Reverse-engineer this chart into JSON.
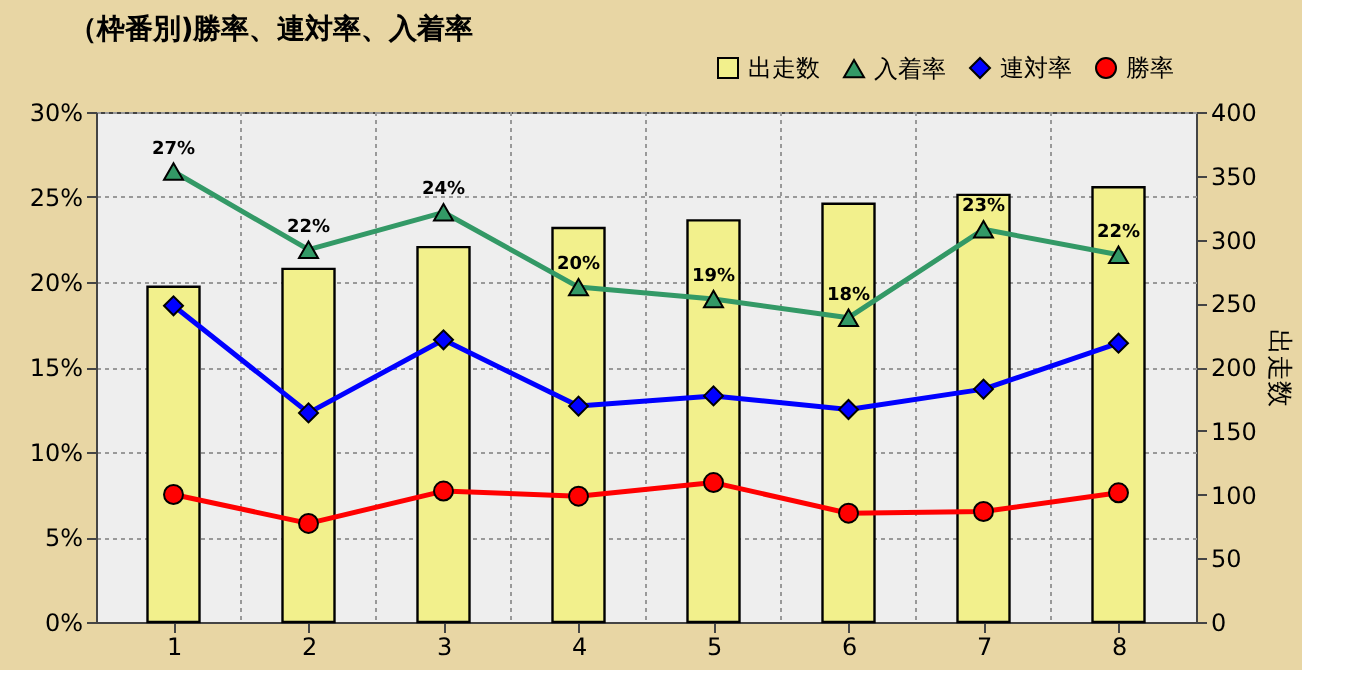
{
  "chart_data": {
    "type": "line",
    "title": "（枠番別)勝率、連対率、入着率",
    "categories": [
      "1",
      "2",
      "3",
      "4",
      "5",
      "6",
      "7",
      "8"
    ],
    "series": [
      {
        "name": "出走数",
        "type": "bar",
        "axis": "y2",
        "color": "#f2f08c",
        "values": [
          263,
          277,
          294,
          309,
          315,
          328,
          335,
          341
        ]
      },
      {
        "name": "入着率",
        "marker": "triangle",
        "color": "#339966",
        "values": [
          26.5,
          21.9,
          24.1,
          19.7,
          19.0,
          17.9,
          23.1,
          21.6
        ],
        "value_labels": [
          "27%",
          "22%",
          "24%",
          "20%",
          "19%",
          "18%",
          "23%",
          "22%"
        ]
      },
      {
        "name": "連対率",
        "marker": "diamond",
        "color": "#0000ff",
        "values": [
          18.6,
          12.3,
          16.6,
          12.7,
          13.3,
          12.5,
          13.7,
          16.4
        ]
      },
      {
        "name": "勝率",
        "marker": "circle",
        "color": "#ff0000",
        "values": [
          7.5,
          5.8,
          7.7,
          7.4,
          8.2,
          6.4,
          6.5,
          7.6
        ]
      }
    ],
    "ylim": [
      0,
      30
    ],
    "yticks": [
      {
        "value": 0,
        "label": "0%"
      },
      {
        "value": 5,
        "label": "5%"
      },
      {
        "value": 10,
        "label": "10%"
      },
      {
        "value": 15,
        "label": "15%"
      },
      {
        "value": 20,
        "label": "20%"
      },
      {
        "value": 25,
        "label": "25%"
      },
      {
        "value": 30,
        "label": "30%"
      }
    ],
    "y2lim": [
      0,
      400
    ],
    "y2ticks": [
      0,
      50,
      100,
      150,
      200,
      250,
      300,
      350,
      400
    ],
    "y2label": "出走数",
    "grid": true,
    "legend": "top right",
    "line_style": "solid"
  }
}
